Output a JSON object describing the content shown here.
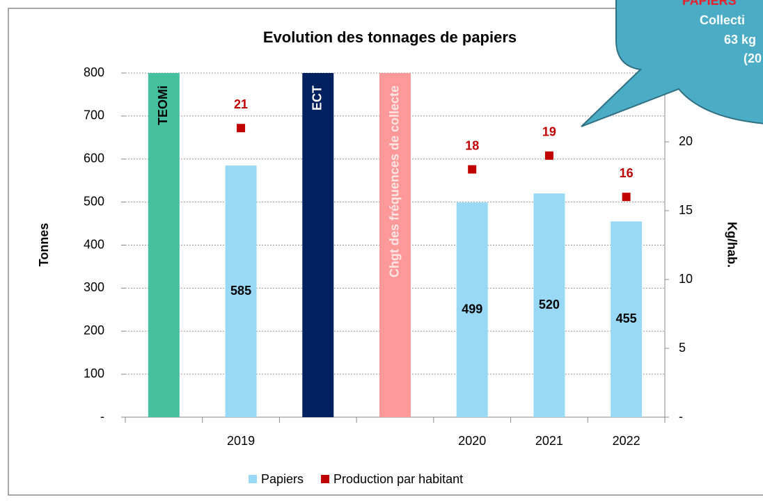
{
  "chart_data": {
    "type": "bar",
    "title": "Evolution des tonnages de papiers",
    "y_label": "Tonnes",
    "y2_label": "Kg/hab.",
    "categories": [
      null,
      "2019",
      null,
      null,
      "2020",
      "2021",
      "2022"
    ],
    "event_labels": [
      "TEOMi",
      null,
      "ECT",
      "Chgt des fréquences de collecte",
      null,
      null,
      null
    ],
    "event_colors": [
      "#45c1a0",
      null,
      "#002060",
      "#ff9999",
      null,
      null,
      null
    ],
    "event_text_colors": [
      "#000000",
      null,
      "#ffffff",
      "#ffe6e6",
      null,
      null,
      null
    ],
    "series": [
      {
        "name": "Papiers",
        "color": "#99d9f5",
        "values": [
          null,
          585,
          null,
          null,
          499,
          520,
          455
        ]
      },
      {
        "name": "Production par habitant",
        "color": "#c00000",
        "axis": "y2",
        "values": [
          null,
          21,
          null,
          null,
          18,
          19,
          16
        ]
      }
    ],
    "ylim": [
      0,
      800
    ],
    "yticks": [
      {
        "value": 0,
        "label": "-"
      },
      100,
      200,
      300,
      400,
      500,
      600,
      700,
      800
    ],
    "y2lim": [
      0,
      25
    ],
    "y2ticks": [
      {
        "value": 0,
        "label": "-"
      },
      5,
      10,
      15,
      20
    ],
    "grid": true,
    "legend": "bottom",
    "callout": {
      "lines": [
        "PAPIERS",
        "Collecti",
        "63 kg",
        "(20"
      ],
      "color": "#4bacc6"
    }
  }
}
